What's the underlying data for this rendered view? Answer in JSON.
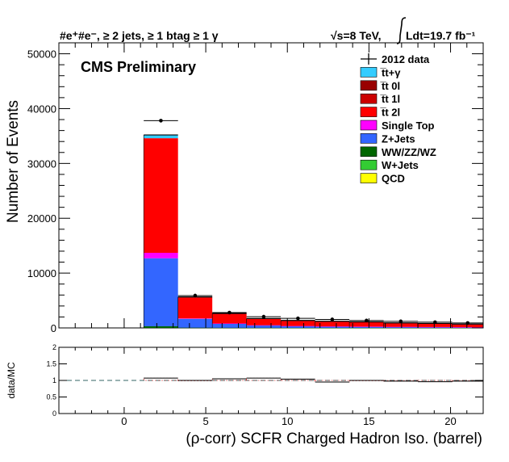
{
  "header": {
    "left": "#e⁺#e⁻, ≥ 2 jets, ≥ 1 btag ≥ 1 γ",
    "right_energy": "√s=8 TeV,",
    "right_lumi": "Ldt=19.7 fb⁻¹"
  },
  "cms_label": "CMS Preliminary",
  "chart_data": [
    {
      "type": "bar",
      "stacked": true,
      "xlabel": "(ρ-corr) SCFR Charged Hadron Iso. (barrel)",
      "ylabel": "Number of Events",
      "xlim": [
        -4,
        22
      ],
      "ylim": [
        0,
        52000
      ],
      "x_ticks": [
        0,
        5,
        10,
        15,
        20
      ],
      "y_ticks": [
        0,
        10000,
        20000,
        30000,
        40000,
        50000
      ],
      "bin_edges": [
        1.2,
        3.3,
        5.4,
        7.5,
        9.6,
        11.7,
        13.8,
        15.9,
        18.0,
        20.1,
        22.0
      ],
      "series": [
        {
          "name": "QCD",
          "color": "#ffff00",
          "values": [
            0,
            0,
            0,
            0,
            0,
            0,
            0,
            0,
            0,
            0
          ]
        },
        {
          "name": "W+Jets",
          "color": "#33cc33",
          "values": [
            0,
            0,
            0,
            0,
            0,
            0,
            0,
            0,
            0,
            0
          ]
        },
        {
          "name": "WW/ZZ/WZ",
          "color": "#006600",
          "values": [
            300,
            50,
            30,
            20,
            15,
            12,
            10,
            8,
            6,
            5
          ]
        },
        {
          "name": "Z+Jets",
          "color": "#3366ff",
          "values": [
            12400,
            1600,
            750,
            450,
            320,
            250,
            220,
            180,
            150,
            120
          ]
        },
        {
          "name": "Single Top",
          "color": "#ff00ff",
          "values": [
            1000,
            80,
            30,
            20,
            15,
            12,
            10,
            8,
            7,
            6
          ]
        },
        {
          "name": "t̅t 2l",
          "color": "#ff0000",
          "values": [
            20900,
            3850,
            1800,
            1200,
            1000,
            930,
            860,
            720,
            650,
            570
          ]
        },
        {
          "name": "t̅t 1l",
          "color": "#cc0000",
          "values": [
            0,
            0,
            0,
            0,
            0,
            0,
            0,
            0,
            0,
            0
          ]
        },
        {
          "name": "t̅t 0l",
          "color": "#990000",
          "values": [
            0,
            0,
            0,
            0,
            0,
            0,
            0,
            0,
            0,
            0
          ]
        },
        {
          "name": "t̅t+γ",
          "color": "#33ccff",
          "values": [
            600,
            70,
            30,
            20,
            15,
            12,
            10,
            8,
            7,
            6
          ]
        }
      ],
      "data": {
        "name": "2012 data",
        "x": [
          2.25,
          4.35,
          6.45,
          8.55,
          10.65,
          12.75,
          14.85,
          16.95,
          19.05,
          21.05
        ],
        "y": [
          37800,
          5900,
          2800,
          2050,
          1750,
          1550,
          1350,
          1200,
          1050,
          900
        ]
      },
      "legend_position": "top-right",
      "legend_order": [
        "2012 data",
        "t̅t+γ",
        "t̅t 0l",
        "t̅t 1l",
        "t̅t 2l",
        "Single Top",
        "Z+Jets",
        "WW/ZZ/WZ",
        "W+Jets",
        "QCD"
      ]
    },
    {
      "type": "line",
      "ylabel": "data/MC",
      "xlim": [
        -4,
        22
      ],
      "ylim": [
        0,
        2
      ],
      "x_ticks": [
        0,
        5,
        10,
        15,
        20
      ],
      "y_ticks": [
        0,
        0.5,
        1,
        1.5,
        2
      ],
      "y_tick_labels": [
        "0",
        "0.5",
        "1",
        "1.5",
        "2"
      ],
      "reference_line": 1,
      "x": [
        2.25,
        4.35,
        6.45,
        8.55,
        10.65,
        12.75,
        14.85,
        16.95,
        19.05,
        21.05
      ],
      "y": [
        1.07,
        1.0,
        1.05,
        1.07,
        1.04,
        0.95,
        1.0,
        0.98,
        0.96,
        0.98
      ]
    }
  ]
}
